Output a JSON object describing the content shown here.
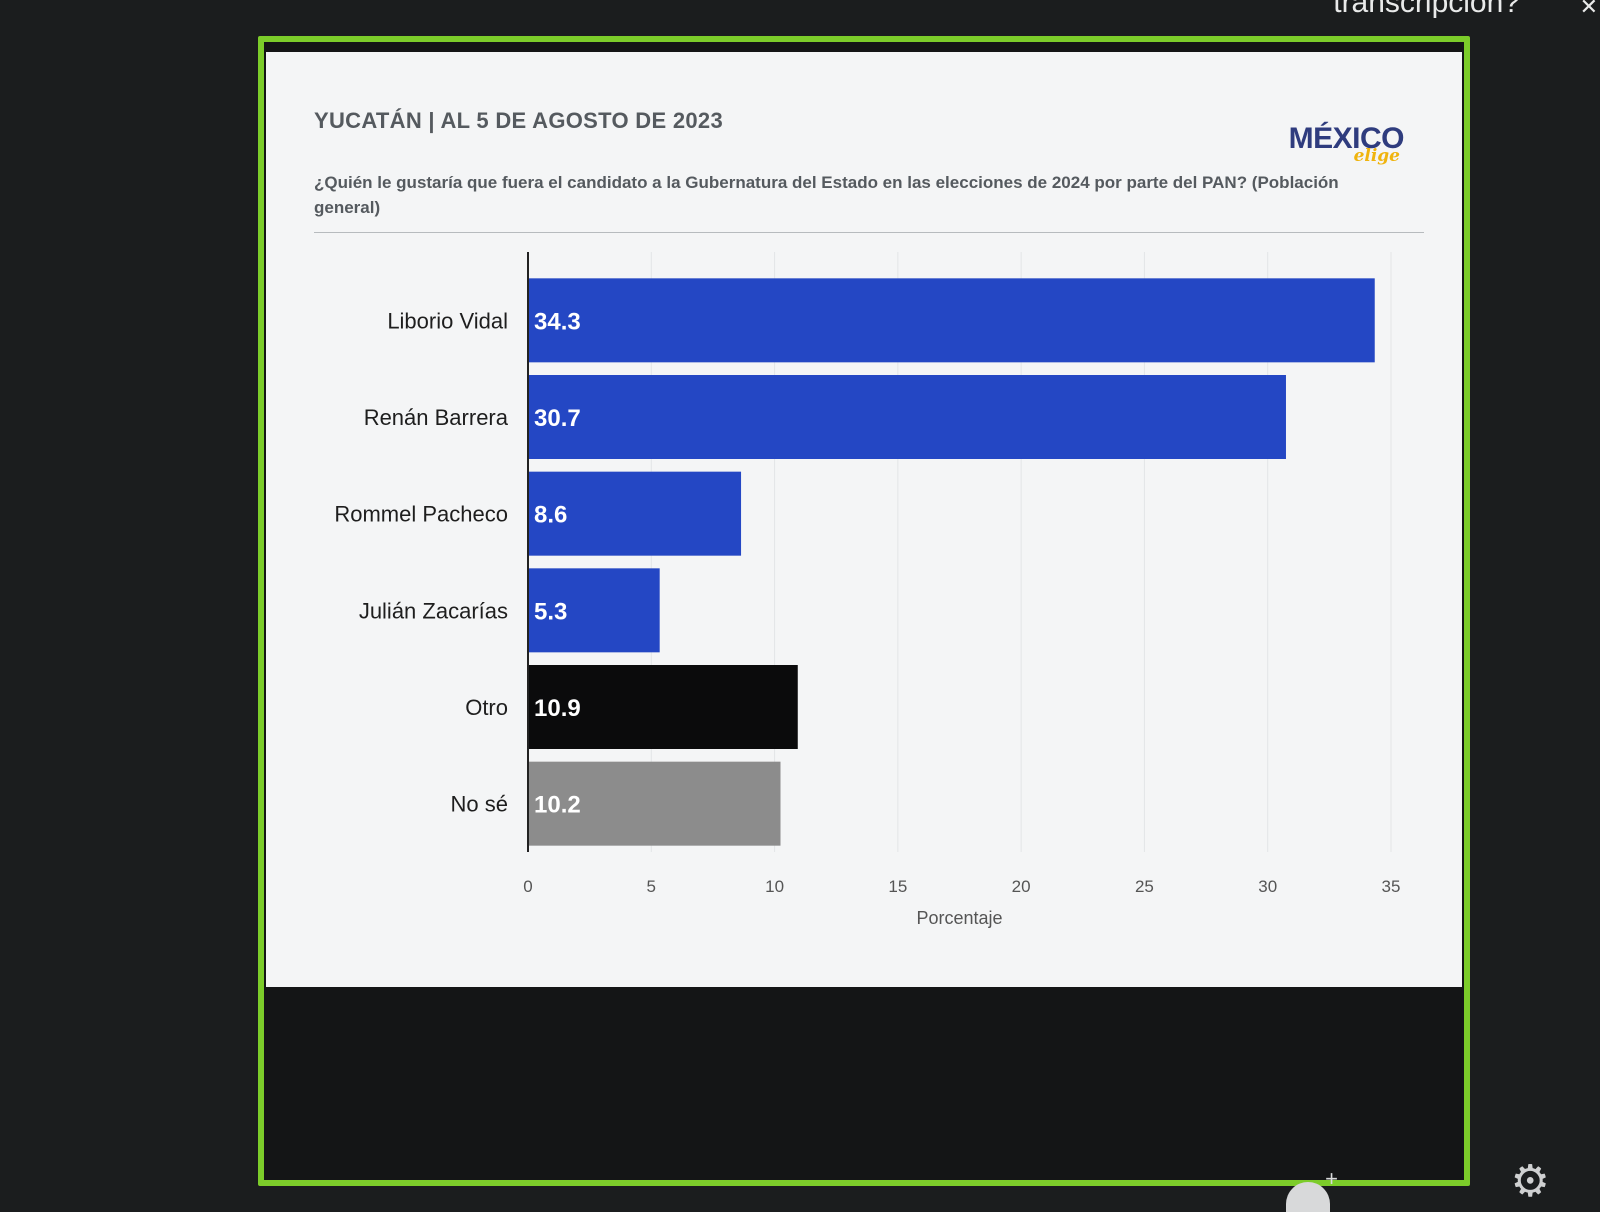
{
  "screen": {
    "topbar_text": "transcripción?",
    "close_glyph": "✕",
    "gear_icon": "gear-icon",
    "gear_glyph": "⚙",
    "avatar_icon": "add-user-icon",
    "plus_glyph": "+"
  },
  "card": {
    "title": "YUCATÁN | AL 5 DE AGOSTO DE 2023",
    "question": "¿Quién le gustaría que fuera el candidato a la Gubernatura del Estado en las elecciones de 2024 por parte del PAN? (Población general)",
    "logo_word": "MÉXICO",
    "logo_script": "elige"
  },
  "chart_data": {
    "type": "bar",
    "orientation": "horizontal",
    "categories": [
      "Liborio Vidal",
      "Renán Barrera",
      "Rommel Pacheco",
      "Julián Zacarías",
      "Otro",
      "No sé"
    ],
    "values": [
      34.3,
      30.7,
      8.6,
      5.3,
      10.9,
      10.2
    ],
    "data_labels": [
      "34.3",
      "30.7",
      "8.6",
      "5.3",
      "10.9",
      "10.2"
    ],
    "colors": [
      "#2447c4",
      "#2447c4",
      "#2447c4",
      "#2447c4",
      "#0b0b0c",
      "#8c8c8c"
    ],
    "xlabel": "Porcentaje",
    "xlim": [
      0,
      35
    ],
    "xticks": [
      0,
      5,
      10,
      15,
      20,
      25,
      30,
      35
    ],
    "grid": "vertical",
    "legend": "none"
  }
}
